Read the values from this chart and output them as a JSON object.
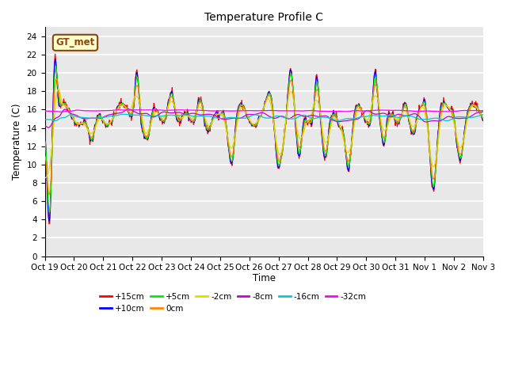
{
  "title": "Temperature Profile C",
  "xlabel": "Time",
  "ylabel": "Temperature (C)",
  "ylim": [
    0,
    25
  ],
  "yticks": [
    0,
    2,
    4,
    6,
    8,
    10,
    12,
    14,
    16,
    18,
    20,
    22,
    24
  ],
  "x_labels": [
    "Oct 19",
    "Oct 20",
    "Oct 21",
    "Oct 22",
    "Oct 23",
    "Oct 24",
    "Oct 25",
    "Oct 26",
    "Oct 27",
    "Oct 28",
    "Oct 29",
    "Oct 30",
    "Oct 31",
    "Nov 1",
    "Nov 2",
    "Nov 3"
  ],
  "annotation_text": "GT_met",
  "legend_entries": [
    {
      "label": "+15cm",
      "color": "#ff0000"
    },
    {
      "label": "+10cm",
      "color": "#0000ff"
    },
    {
      "label": "+5cm",
      "color": "#00ee00"
    },
    {
      "label": "0cm",
      "color": "#ff8800"
    },
    {
      "label": "-2cm",
      "color": "#dddd00"
    },
    {
      "label": "-8cm",
      "color": "#cc00cc"
    },
    {
      "label": "-16cm",
      "color": "#00cccc"
    },
    {
      "label": "-32cm",
      "color": "#ff00ff"
    }
  ],
  "bg_color": "#e8e8e8",
  "fig_bg_color": "#ffffff",
  "grid_color": "#ffffff",
  "annotation_fg": "#8B4513",
  "annotation_bg": "#ffffcc",
  "annotation_edge": "#8B4513"
}
